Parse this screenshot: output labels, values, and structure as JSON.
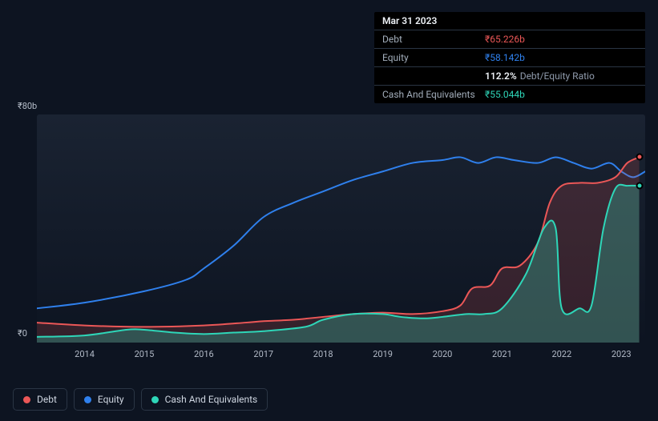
{
  "colors": {
    "bg": "#0d1421",
    "plot_grad_top": "#1a2332",
    "plot_grad_bot": "#0d1421",
    "debt": "#eb5757",
    "equity": "#2f80ed",
    "cash": "#2ed6b8",
    "text": "#c5cdd9",
    "muted": "#8f9aab",
    "border": "#2a3544",
    "tooltip_bg": "#000000",
    "label_fontsize": 11,
    "tooltip_fontsize": 12,
    "legend_fontsize": 12,
    "line_width": 2
  },
  "tooltip": {
    "date": "Mar 31 2023",
    "rows": [
      {
        "label": "Debt",
        "value": "₹65.226b",
        "class": "debt"
      },
      {
        "label": "Equity",
        "value": "₹58.142b",
        "class": "equity"
      }
    ],
    "ratio": "112.2%",
    "ratio_label": "Debt/Equity Ratio",
    "cash_label": "Cash And Equivalents",
    "cash_value": "₹55.044b"
  },
  "chart": {
    "type": "area-line",
    "xlim": [
      2013.2,
      2023.4
    ],
    "ylim": [
      0,
      80
    ],
    "yticks": [
      {
        "v": 80,
        "label": "₹80b"
      },
      {
        "v": 0,
        "label": "₹0"
      }
    ],
    "xticks": [
      2014,
      2015,
      2016,
      2017,
      2018,
      2019,
      2020,
      2021,
      2022,
      2023
    ],
    "series": {
      "equity": {
        "label": "Equity",
        "color": "#2f80ed",
        "points": [
          [
            2013.2,
            12
          ],
          [
            2014,
            14
          ],
          [
            2015,
            18
          ],
          [
            2015.7,
            22
          ],
          [
            2016,
            26
          ],
          [
            2016.5,
            34
          ],
          [
            2017,
            44
          ],
          [
            2017.5,
            49
          ],
          [
            2018,
            53
          ],
          [
            2018.5,
            57
          ],
          [
            2019,
            60
          ],
          [
            2019.5,
            63
          ],
          [
            2020,
            64
          ],
          [
            2020.3,
            65
          ],
          [
            2020.6,
            63
          ],
          [
            2020.9,
            65
          ],
          [
            2021.2,
            64
          ],
          [
            2021.6,
            63
          ],
          [
            2021.9,
            65
          ],
          [
            2022.2,
            63
          ],
          [
            2022.5,
            61
          ],
          [
            2022.8,
            63
          ],
          [
            2023.0,
            60
          ],
          [
            2023.2,
            58
          ],
          [
            2023.4,
            60
          ]
        ]
      },
      "debt": {
        "label": "Debt",
        "color": "#eb5757",
        "points": [
          [
            2013.2,
            7
          ],
          [
            2014,
            6
          ],
          [
            2015,
            5.5
          ],
          [
            2016,
            6
          ],
          [
            2016.7,
            7
          ],
          [
            2017,
            7.5
          ],
          [
            2017.5,
            8
          ],
          [
            2018,
            9
          ],
          [
            2018.5,
            10
          ],
          [
            2019,
            10.5
          ],
          [
            2019.5,
            10
          ],
          [
            2020,
            11
          ],
          [
            2020.3,
            13
          ],
          [
            2020.5,
            19
          ],
          [
            2020.8,
            20
          ],
          [
            2021,
            26
          ],
          [
            2021.3,
            27
          ],
          [
            2021.6,
            35
          ],
          [
            2021.8,
            49
          ],
          [
            2022,
            55
          ],
          [
            2022.3,
            56
          ],
          [
            2022.6,
            56
          ],
          [
            2022.9,
            58
          ],
          [
            2023.1,
            63
          ],
          [
            2023.3,
            65
          ]
        ]
      },
      "cash": {
        "label": "Cash And Equivalents",
        "color": "#2ed6b8",
        "points": [
          [
            2013.2,
            2
          ],
          [
            2014,
            2.5
          ],
          [
            2014.7,
            4.5
          ],
          [
            2015,
            4.5
          ],
          [
            2015.5,
            3.5
          ],
          [
            2016,
            3
          ],
          [
            2016.5,
            3.5
          ],
          [
            2017,
            4
          ],
          [
            2017.7,
            5.5
          ],
          [
            2018,
            8
          ],
          [
            2018.5,
            10
          ],
          [
            2019,
            10
          ],
          [
            2019.3,
            9
          ],
          [
            2019.7,
            8.5
          ],
          [
            2020,
            9
          ],
          [
            2020.4,
            10
          ],
          [
            2020.7,
            10
          ],
          [
            2021,
            12
          ],
          [
            2021.4,
            24
          ],
          [
            2021.7,
            40
          ],
          [
            2021.9,
            40
          ],
          [
            2022.0,
            12
          ],
          [
            2022.3,
            12
          ],
          [
            2022.5,
            13
          ],
          [
            2022.7,
            40
          ],
          [
            2022.9,
            54
          ],
          [
            2023.1,
            55
          ],
          [
            2023.3,
            55
          ]
        ]
      }
    },
    "legend_order": [
      "debt",
      "equity",
      "cash"
    ]
  }
}
